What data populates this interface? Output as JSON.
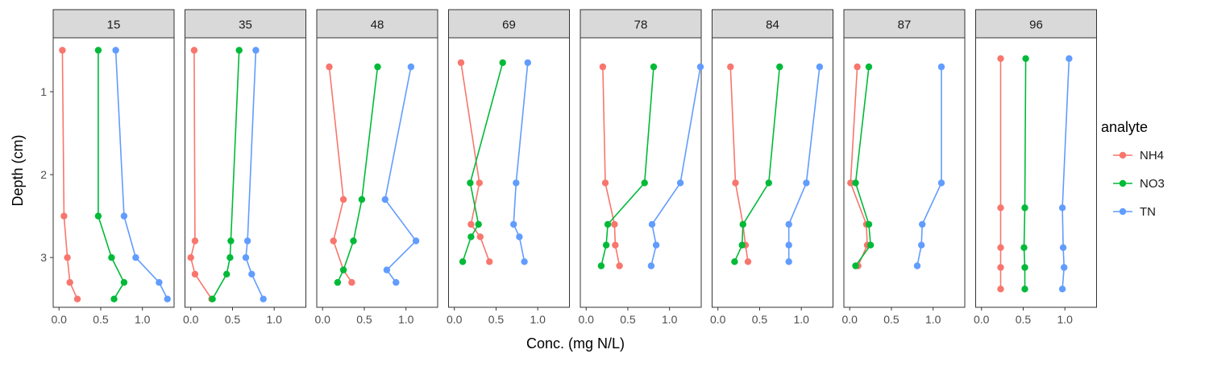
{
  "chart_data": {
    "type": "line",
    "facet_by": "site",
    "facets": [
      "15",
      "35",
      "48",
      "69",
      "78",
      "84",
      "87",
      "96"
    ],
    "xlabel": "Conc. (mg N/L)",
    "ylabel": "Depth (cm)",
    "y_reversed": true,
    "ylim": [
      0.35,
      3.6
    ],
    "yticks": [
      1,
      2,
      3
    ],
    "xlim": [
      -0.07,
      1.38
    ],
    "xticks": [
      "0.0",
      "0.5",
      "1.0"
    ],
    "legend": {
      "title": "analyte",
      "position": "right",
      "entries": [
        "NH4",
        "NO3",
        "TN"
      ]
    },
    "colors": {
      "NH4": "#F8766D",
      "NO3": "#00BA38",
      "TN": "#619CFF"
    },
    "panels": [
      {
        "facet": "15",
        "series": [
          {
            "name": "NH4",
            "depth": [
              0.5,
              2.5,
              3.0,
              3.3,
              3.5
            ],
            "conc": [
              0.04,
              0.06,
              0.1,
              0.13,
              0.22
            ]
          },
          {
            "name": "NO3",
            "depth": [
              0.5,
              2.5,
              3.0,
              3.3,
              3.5
            ],
            "conc": [
              0.47,
              0.47,
              0.63,
              0.78,
              0.66
            ]
          },
          {
            "name": "TN",
            "depth": [
              0.5,
              2.5,
              3.0,
              3.3,
              3.5
            ],
            "conc": [
              0.68,
              0.78,
              0.92,
              1.2,
              1.3
            ]
          }
        ]
      },
      {
        "facet": "35",
        "series": [
          {
            "name": "NH4",
            "depth": [
              0.5,
              2.8,
              3.0,
              3.2,
              3.5
            ],
            "conc": [
              0.04,
              0.05,
              0.0,
              0.05,
              0.25
            ]
          },
          {
            "name": "NO3",
            "depth": [
              0.5,
              2.8,
              3.0,
              3.2,
              3.5
            ],
            "conc": [
              0.58,
              0.48,
              0.47,
              0.43,
              0.26
            ]
          },
          {
            "name": "TN",
            "depth": [
              0.5,
              2.8,
              3.0,
              3.2,
              3.5
            ],
            "conc": [
              0.78,
              0.68,
              0.66,
              0.73,
              0.87
            ]
          }
        ]
      },
      {
        "facet": "48",
        "series": [
          {
            "name": "NH4",
            "depth": [
              0.7,
              2.3,
              2.8,
              3.15,
              3.3
            ],
            "conc": [
              0.08,
              0.25,
              0.13,
              0.25,
              0.35
            ]
          },
          {
            "name": "NO3",
            "depth": [
              0.7,
              2.3,
              2.8,
              3.15,
              3.3
            ],
            "conc": [
              0.66,
              0.47,
              0.37,
              0.25,
              0.18
            ]
          },
          {
            "name": "TN",
            "depth": [
              0.7,
              2.3,
              2.8,
              3.15,
              3.3
            ],
            "conc": [
              1.06,
              0.75,
              1.12,
              0.77,
              0.88
            ]
          }
        ]
      },
      {
        "facet": "69",
        "series": [
          {
            "name": "NH4",
            "depth": [
              0.65,
              2.1,
              2.6,
              2.75,
              3.05
            ],
            "conc": [
              0.08,
              0.3,
              0.2,
              0.31,
              0.42
            ]
          },
          {
            "name": "NO3",
            "depth": [
              0.65,
              2.1,
              2.6,
              2.75,
              3.05
            ],
            "conc": [
              0.58,
              0.19,
              0.29,
              0.2,
              0.1
            ]
          },
          {
            "name": "TN",
            "depth": [
              0.65,
              2.1,
              2.6,
              2.75,
              3.05
            ],
            "conc": [
              0.88,
              0.74,
              0.71,
              0.78,
              0.84
            ]
          }
        ]
      },
      {
        "facet": "78",
        "series": [
          {
            "name": "NH4",
            "depth": [
              0.7,
              2.1,
              2.6,
              2.85,
              3.1
            ],
            "conc": [
              0.2,
              0.23,
              0.34,
              0.35,
              0.4
            ]
          },
          {
            "name": "NO3",
            "depth": [
              0.7,
              2.1,
              2.6,
              2.85,
              3.1
            ],
            "conc": [
              0.81,
              0.7,
              0.26,
              0.24,
              0.18
            ]
          },
          {
            "name": "TN",
            "depth": [
              0.7,
              2.1,
              2.6,
              2.85,
              3.1
            ],
            "conc": [
              1.37,
              1.13,
              0.79,
              0.84,
              0.78
            ]
          }
        ]
      },
      {
        "facet": "84",
        "series": [
          {
            "name": "NH4",
            "depth": [
              0.7,
              2.1,
              2.6,
              2.85,
              3.05
            ],
            "conc": [
              0.15,
              0.21,
              0.3,
              0.33,
              0.36
            ]
          },
          {
            "name": "NO3",
            "depth": [
              0.7,
              2.1,
              2.6,
              2.85,
              3.05
            ],
            "conc": [
              0.74,
              0.61,
              0.3,
              0.29,
              0.2
            ]
          },
          {
            "name": "TN",
            "depth": [
              0.7,
              2.1,
              2.6,
              2.85,
              3.05
            ],
            "conc": [
              1.22,
              1.06,
              0.85,
              0.85,
              0.85
            ]
          }
        ]
      },
      {
        "facet": "87",
        "series": [
          {
            "name": "NH4",
            "depth": [
              0.7,
              2.1,
              2.6,
              2.85,
              3.1
            ],
            "conc": [
              0.09,
              0.01,
              0.2,
              0.21,
              0.1
            ]
          },
          {
            "name": "NO3",
            "depth": [
              0.7,
              2.1,
              2.6,
              2.85,
              3.1
            ],
            "conc": [
              0.23,
              0.07,
              0.23,
              0.25,
              0.07
            ]
          },
          {
            "name": "TN",
            "depth": [
              0.7,
              2.1,
              2.6,
              2.85,
              3.1
            ],
            "conc": [
              1.1,
              1.1,
              0.87,
              0.86,
              0.81
            ]
          }
        ]
      },
      {
        "facet": "96",
        "series": [
          {
            "name": "NH4",
            "depth": [
              0.6,
              2.4,
              2.88,
              3.12,
              3.38
            ],
            "conc": [
              0.23,
              0.23,
              0.23,
              0.23,
              0.23
            ]
          },
          {
            "name": "NO3",
            "depth": [
              0.6,
              2.4,
              2.88,
              3.12,
              3.38
            ],
            "conc": [
              0.53,
              0.52,
              0.51,
              0.52,
              0.52
            ]
          },
          {
            "name": "TN",
            "depth": [
              0.6,
              2.4,
              2.88,
              3.12,
              3.38
            ],
            "conc": [
              1.05,
              0.97,
              0.98,
              0.99,
              0.97
            ]
          }
        ]
      }
    ]
  }
}
